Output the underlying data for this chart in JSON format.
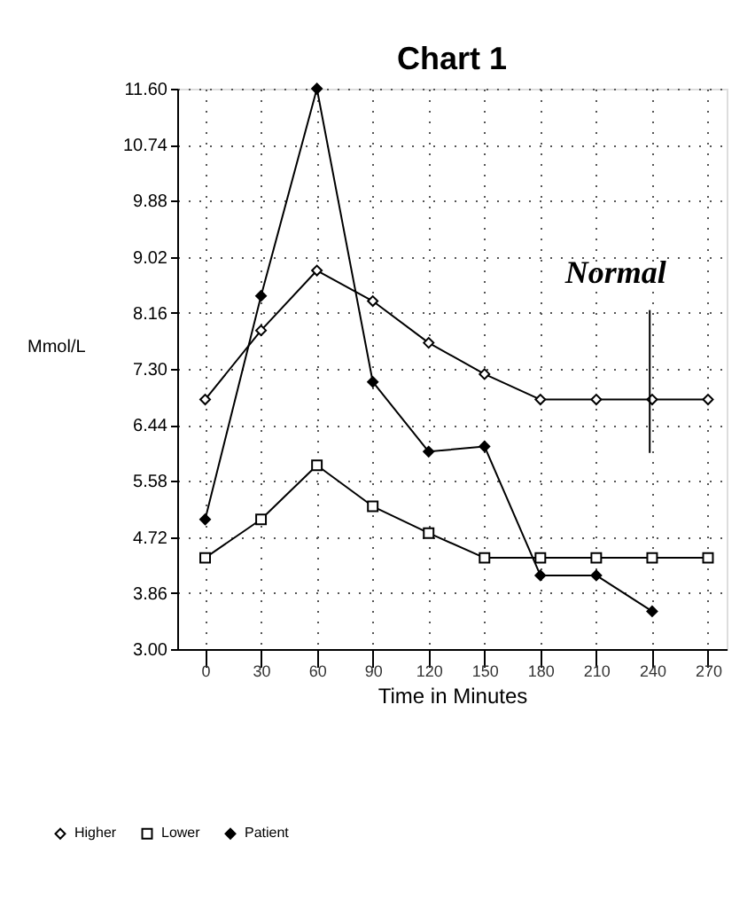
{
  "chart_data": {
    "type": "line",
    "title": "Chart 1",
    "xlabel": "Time in Minutes",
    "ylabel": "Mmol/L",
    "x": [
      0,
      30,
      60,
      90,
      120,
      150,
      180,
      210,
      240,
      270
    ],
    "series": [
      {
        "name": "Higher",
        "color": "#ffffff",
        "marker": "diamond",
        "values": [
          6.83,
          7.89,
          8.81,
          8.34,
          7.7,
          7.22,
          6.83,
          6.83,
          6.83,
          6.83
        ]
      },
      {
        "name": "Lower",
        "color": "#ffffff",
        "marker": "square",
        "values": [
          4.4,
          4.99,
          5.82,
          5.19,
          4.78,
          4.4,
          4.4,
          4.4,
          4.4,
          4.4
        ]
      },
      {
        "name": "Patient",
        "color": "#000000",
        "marker": "diamond",
        "values": [
          4.99,
          8.42,
          11.6,
          7.1,
          6.03,
          6.11,
          4.13,
          4.13,
          3.58,
          null
        ]
      }
    ],
    "xlim": [
      -15,
      280
    ],
    "xticks": [
      0,
      30,
      60,
      90,
      120,
      150,
      180,
      210,
      240,
      270
    ],
    "ylim": [
      3.0,
      11.6
    ],
    "yticks": [
      {
        "value": 3.0,
        "label": "3.00"
      },
      {
        "value": 3.86,
        "label": "3.86"
      },
      {
        "value": 4.72,
        "label": "4.72"
      },
      {
        "value": 5.58,
        "label": "5.58"
      },
      {
        "value": 6.44,
        "label": "6.44"
      },
      {
        "value": 7.3,
        "label": "7.30"
      },
      {
        "value": 8.16,
        "label": "8.16"
      },
      {
        "value": 9.02,
        "label": "9.02"
      },
      {
        "value": 9.88,
        "label": "9.88"
      },
      {
        "value": 10.74,
        "label": "10.74"
      },
      {
        "value": 11.6,
        "label": "11.60"
      }
    ],
    "grid": true,
    "line_style": "solid",
    "legend": "bottom left",
    "annotations": [
      "Normal"
    ]
  }
}
